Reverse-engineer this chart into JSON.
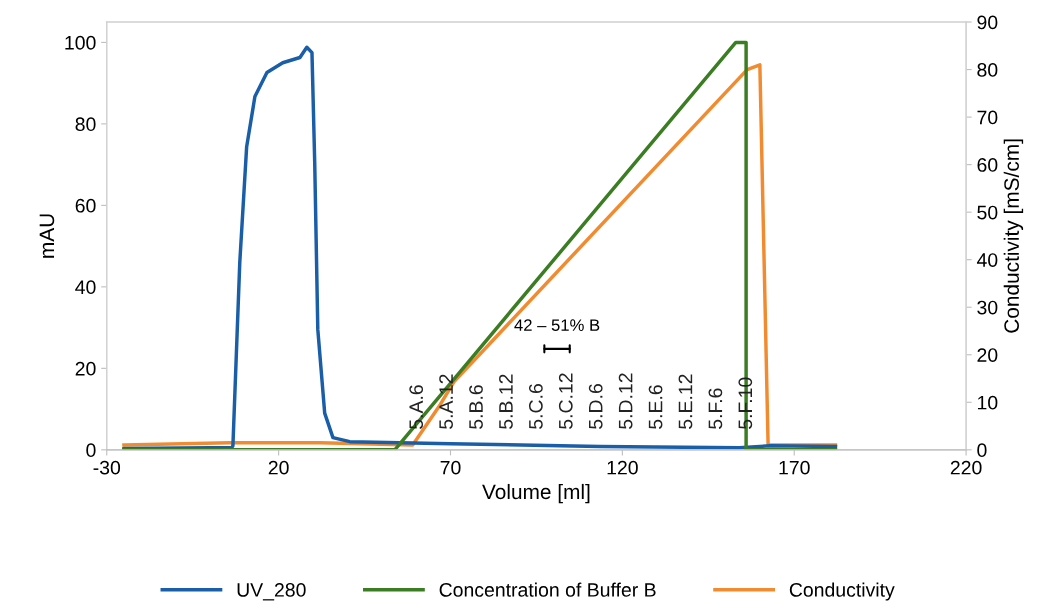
{
  "chart_data": {
    "type": "line",
    "xlabel": "Volume [ml]",
    "ylabel": "mAU",
    "y2label": "Conductivity [mS/cm]",
    "xlim": [
      -30,
      220
    ],
    "xticks": [
      -30,
      20,
      70,
      120,
      170,
      220
    ],
    "ylim": [
      0,
      105
    ],
    "yticks": [
      0,
      20,
      40,
      60,
      80,
      100
    ],
    "y2lim": [
      0,
      90
    ],
    "y2ticks": [
      0,
      10,
      20,
      30,
      40,
      50,
      60,
      70,
      80,
      90
    ],
    "grid": false,
    "legend": "bottom",
    "marker": "none",
    "line_style": "solid",
    "series": [
      {
        "name": "UV_280",
        "color": "#1a5ea8",
        "x": [
          -25,
          0,
          6.4,
          6.7,
          8.7,
          10.7,
          13.1,
          16.6,
          21.2,
          26.2,
          28.2,
          29.7,
          30.5,
          31.4,
          33.4,
          35.8,
          40.7,
          70,
          113.5,
          154,
          163,
          182
        ],
        "values": [
          0.3,
          0.5,
          0.6,
          1,
          46,
          74.4,
          86.7,
          92.6,
          95,
          96.3,
          98.8,
          97.5,
          70.5,
          29.5,
          9,
          3,
          2,
          1.5,
          0.8,
          0.5,
          1,
          0.8
        ]
      },
      {
        "name": "Concentration of Buffer B",
        "color": "#3b7d23",
        "x": [
          -25,
          53.8,
          153,
          156,
          156,
          182
        ],
        "values": [
          0,
          0,
          100,
          100,
          0,
          0
        ]
      },
      {
        "name": "Conductivity",
        "color": "#f28b30",
        "axis": "y2",
        "x": [
          -25,
          5.8,
          32,
          59,
          67,
          71,
          156.3,
          160,
          162.4,
          182
        ],
        "values": [
          1,
          1.5,
          1.5,
          1,
          9.5,
          14.3,
          80,
          81,
          1,
          1
        ]
      }
    ],
    "annotations": [
      "5.A.6",
      "5.A.12",
      "5.B.6",
      "5.B.12",
      "5.C.6",
      "5.C.12",
      "5.D.6",
      "5.D.12",
      "5.E.6",
      "5.E.12",
      "5.F.6",
      "5.F.10",
      "42 – 51% B"
    ]
  }
}
